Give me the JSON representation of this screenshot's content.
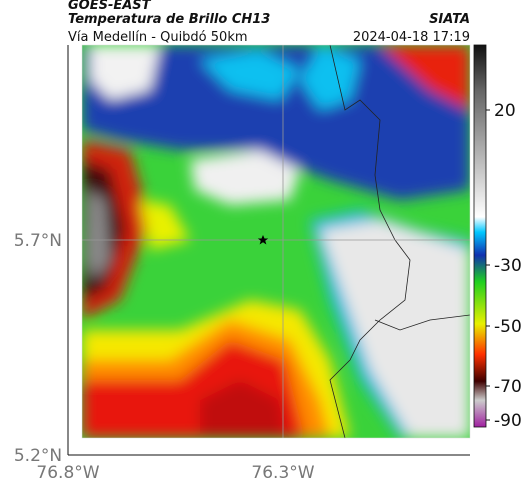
{
  "header": {
    "source": "GOES-EAST",
    "title": "Temperatura de Brillo CH13",
    "agency": "SIATA",
    "subtitle": "Vía Medellín - Quibdó 50km",
    "datetime": "2024-04-18 17:19"
  },
  "axes": {
    "lat_labels": [
      "5.7°N",
      "5.2°N"
    ],
    "lon_labels": [
      "76.8°W",
      "76.3°W"
    ]
  },
  "colorbar": {
    "tick_labels": [
      "20",
      "-30",
      "-50",
      "-70",
      "-90"
    ]
  }
}
